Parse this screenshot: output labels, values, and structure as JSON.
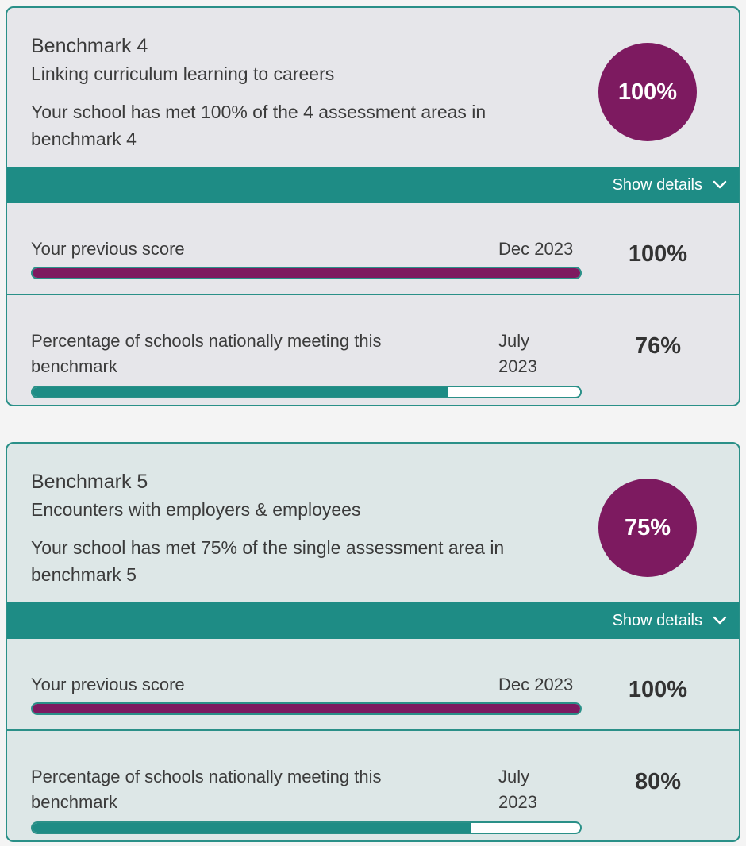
{
  "cards": [
    {
      "title": "Benchmark 4",
      "subtitle": "Linking curriculum learning to careers",
      "description": "Your school has met 100% of the 4 assessment areas in benchmark 4",
      "score_label": "100%",
      "toggle_label": "Show details",
      "previous": {
        "label": "Your previous score",
        "date": "Dec 2023",
        "value_label": "100%",
        "value": 100
      },
      "national": {
        "label": "Percentage of schools nationally meeting this benchmark",
        "date": "July 2023",
        "value_label": "76%",
        "value": 76
      }
    },
    {
      "title": "Benchmark 5",
      "subtitle": "Encounters with employers & employees",
      "description": "Your school has met 75% of the single assessment area in benchmark 5",
      "score_label": "75%",
      "toggle_label": "Show details",
      "previous": {
        "label": "Your previous score",
        "date": "Dec 2023",
        "value_label": "100%",
        "value": 100
      },
      "national": {
        "label": "Percentage of schools nationally meeting this benchmark",
        "date": "July 2023",
        "value_label": "80%",
        "value": 80
      }
    }
  ],
  "colors": {
    "accent_teal": "#1e8c85",
    "score_purple": "#7d1a60"
  },
  "icons": {
    "toggle": "chevron-down-icon"
  }
}
